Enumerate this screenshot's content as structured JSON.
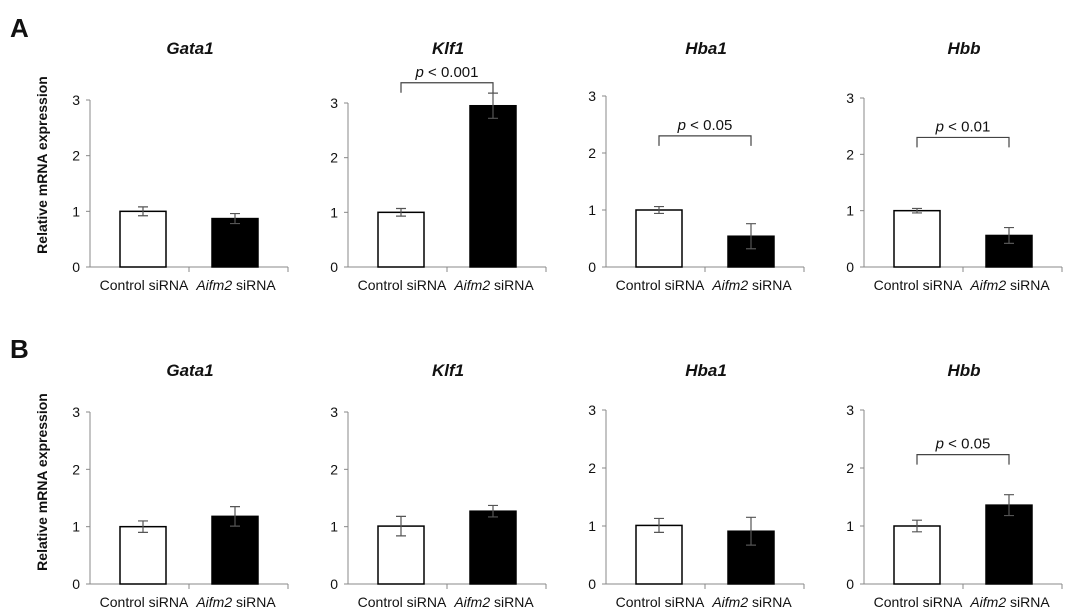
{
  "panels": [
    {
      "letter": "A",
      "ylabel": "Relative mRNA expression"
    },
    {
      "letter": "B",
      "ylabel": "Relative mRNA expression"
    }
  ],
  "colors": {
    "control_fill": "#ffffff",
    "knockdown_fill": "#000000",
    "axis": "#888888"
  },
  "chart_data": [
    {
      "panel": "A",
      "type": "bar",
      "title": "Gata1",
      "categories": [
        {
          "main": "Control",
          "suffix": " siRNA"
        },
        {
          "main": "Aifm2",
          "suffix": " siRNA",
          "italic": true
        }
      ],
      "values": [
        1.0,
        0.87
      ],
      "errors": [
        0.08,
        0.09
      ],
      "yticks": [
        "0",
        "1",
        "2",
        "3"
      ],
      "ylim": [
        0,
        3
      ],
      "significance": null
    },
    {
      "panel": "A",
      "type": "bar",
      "title": "Klf1",
      "categories": [
        {
          "main": "Control",
          "suffix": " siRNA"
        },
        {
          "main": "Aifm2",
          "suffix": " siRNA",
          "italic": true
        }
      ],
      "values": [
        1.0,
        2.95
      ],
      "errors": [
        0.07,
        0.23
      ],
      "yticks": [
        "0",
        "1",
        "2",
        "3"
      ],
      "ylim": [
        0,
        3
      ],
      "significance": {
        "p": "p",
        "rest": " < 0.001",
        "level": 3.37
      }
    },
    {
      "panel": "A",
      "type": "bar",
      "title": "Hba1",
      "categories": [
        {
          "main": "Control",
          "suffix": " siRNA"
        },
        {
          "main": "Aifm2",
          "suffix": " siRNA",
          "italic": true
        }
      ],
      "values": [
        1.0,
        0.54
      ],
      "errors": [
        0.06,
        0.22
      ],
      "yticks": [
        "0",
        "1",
        "2",
        "3"
      ],
      "ylim": [
        0,
        3
      ],
      "significance": {
        "p": "p",
        "rest": " < 0.05",
        "level": 2.3
      }
    },
    {
      "panel": "A",
      "type": "bar",
      "title": "Hbb",
      "categories": [
        {
          "main": "Control",
          "suffix": " siRNA"
        },
        {
          "main": "Aifm2",
          "suffix": " siRNA",
          "italic": true
        }
      ],
      "values": [
        1.0,
        0.56
      ],
      "errors": [
        0.04,
        0.14
      ],
      "yticks": [
        "0",
        "1",
        "2",
        "3"
      ],
      "ylim": [
        0,
        3
      ],
      "significance": {
        "p": "p",
        "rest": " < 0.01",
        "level": 2.3
      }
    },
    {
      "panel": "B",
      "type": "bar",
      "title": "Gata1",
      "categories": [
        {
          "main": "Control",
          "suffix": " siRNA"
        },
        {
          "main": "Aifm2",
          "suffix": " siRNA",
          "italic": true
        }
      ],
      "values": [
        1.0,
        1.18
      ],
      "errors": [
        0.1,
        0.17
      ],
      "yticks": [
        "0",
        "1",
        "2",
        "3"
      ],
      "ylim": [
        0,
        3
      ],
      "significance": null
    },
    {
      "panel": "B",
      "type": "bar",
      "title": "Klf1",
      "categories": [
        {
          "main": "Control",
          "suffix": " siRNA"
        },
        {
          "main": "Aifm2",
          "suffix": " siRNA",
          "italic": true
        }
      ],
      "values": [
        1.01,
        1.27
      ],
      "errors": [
        0.17,
        0.1
      ],
      "yticks": [
        "0",
        "1",
        "2",
        "3"
      ],
      "ylim": [
        0,
        3
      ],
      "significance": null
    },
    {
      "panel": "B",
      "type": "bar",
      "title": "Hba1",
      "categories": [
        {
          "main": "Control",
          "suffix": " siRNA"
        },
        {
          "main": "Aifm2",
          "suffix": " siRNA",
          "italic": true
        }
      ],
      "values": [
        1.01,
        0.91
      ],
      "errors": [
        0.12,
        0.24
      ],
      "yticks": [
        "0",
        "1",
        "2",
        "3"
      ],
      "ylim": [
        0,
        3
      ],
      "significance": null
    },
    {
      "panel": "B",
      "type": "bar",
      "title": "Hbb",
      "categories": [
        {
          "main": "Control",
          "suffix": " siRNA"
        },
        {
          "main": "Aifm2",
          "suffix": " siRNA",
          "italic": true
        }
      ],
      "values": [
        1.0,
        1.36
      ],
      "errors": [
        0.1,
        0.18
      ],
      "yticks": [
        "0",
        "1",
        "2",
        "3"
      ],
      "ylim": [
        0,
        3
      ],
      "significance": {
        "p": "p",
        "rest": " < 0.05",
        "level": 2.23
      }
    }
  ]
}
